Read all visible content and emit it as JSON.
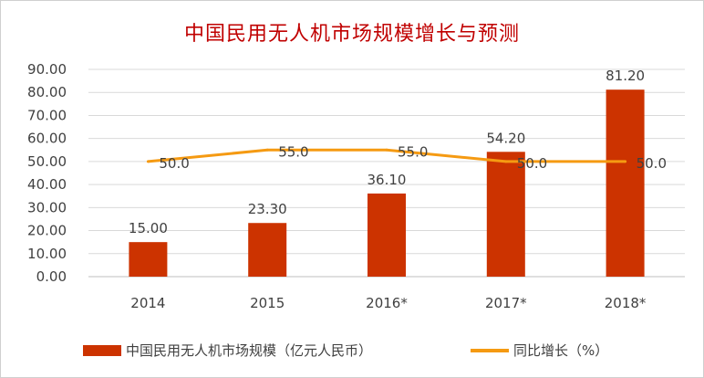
{
  "chart_data": {
    "type": "bar+line",
    "title": "中国民用无人机市场规模增长与预测",
    "categories": [
      "2014",
      "2015",
      "2016*",
      "2017*",
      "2018*"
    ],
    "series": [
      {
        "name": "中国民用无人机市场规模（亿元人民币）",
        "type": "bar",
        "values": [
          15.0,
          23.3,
          36.1,
          54.2,
          81.2
        ],
        "labels": [
          "15.00",
          "23.30",
          "36.10",
          "54.20",
          "81.20"
        ],
        "color": "#cc3300"
      },
      {
        "name": "同比增长（%）",
        "type": "line",
        "values": [
          50.0,
          55.0,
          55.0,
          50.0,
          50.0
        ],
        "labels": [
          "50.0",
          "55.0",
          "55.0",
          "50.0",
          "50.0"
        ],
        "color": "#f59a12"
      }
    ],
    "ylim": [
      0,
      90
    ],
    "yticks": [
      "0.00",
      "10.00",
      "20.00",
      "30.00",
      "40.00",
      "50.00",
      "60.00",
      "70.00",
      "80.00",
      "90.00"
    ],
    "grid": true,
    "legend": "bottom"
  }
}
